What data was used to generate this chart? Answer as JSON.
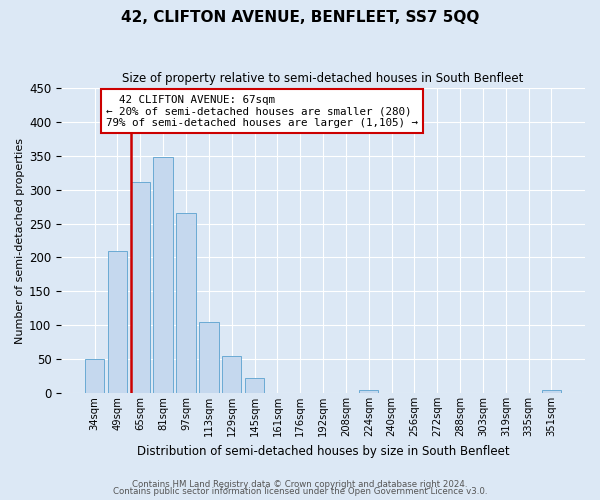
{
  "title": "42, CLIFTON AVENUE, BENFLEET, SS7 5QQ",
  "subtitle": "Size of property relative to semi-detached houses in South Benfleet",
  "xlabel": "Distribution of semi-detached houses by size in South Benfleet",
  "ylabel": "Number of semi-detached properties",
  "footer1": "Contains HM Land Registry data © Crown copyright and database right 2024.",
  "footer2": "Contains public sector information licensed under the Open Government Licence v3.0.",
  "bar_labels": [
    "34sqm",
    "49sqm",
    "65sqm",
    "81sqm",
    "97sqm",
    "113sqm",
    "129sqm",
    "145sqm",
    "161sqm",
    "176sqm",
    "192sqm",
    "208sqm",
    "224sqm",
    "240sqm",
    "256sqm",
    "272sqm",
    "288sqm",
    "303sqm",
    "319sqm",
    "335sqm",
    "351sqm"
  ],
  "bar_values": [
    50,
    210,
    311,
    348,
    265,
    105,
    55,
    22,
    0,
    0,
    0,
    0,
    5,
    0,
    0,
    0,
    0,
    0,
    0,
    0,
    5
  ],
  "bar_color": "#c5d8ee",
  "bar_edge_color": "#6aaad4",
  "property_label": "42 CLIFTON AVENUE: 67sqm",
  "smaller_pct": 20,
  "smaller_count": 280,
  "larger_pct": 79,
  "larger_count": 1105,
  "property_bar_index": 2,
  "annotation_box_color": "#cc0000",
  "ylim": [
    0,
    450
  ],
  "yticks": [
    0,
    50,
    100,
    150,
    200,
    250,
    300,
    350,
    400,
    450
  ],
  "bg_color": "#dce8f5",
  "plot_bg_color": "#dce8f5",
  "grid_color": "#ffffff"
}
